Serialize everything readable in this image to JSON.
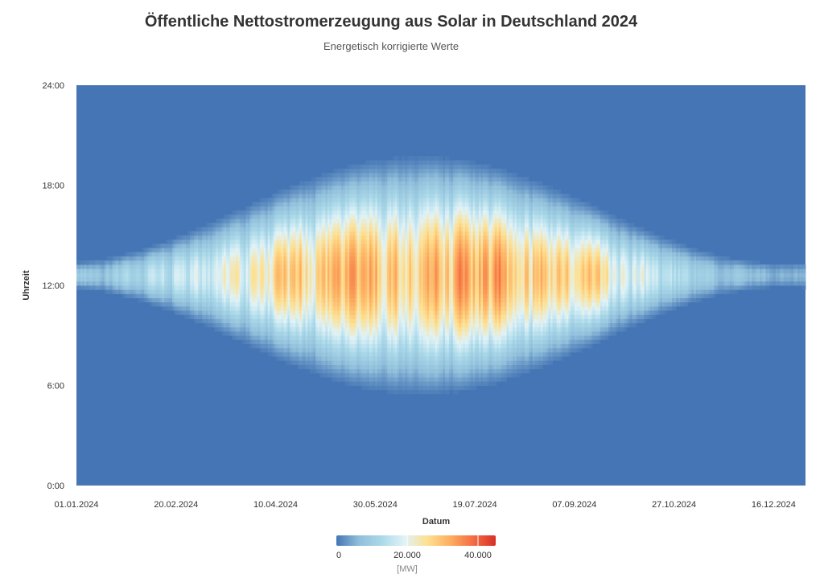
{
  "chart_data": {
    "type": "heatmap",
    "title": "Öffentliche Nettostromerzeugung aus Solar in Deutschland 2024",
    "subtitle": "Energetisch korrigierte Werte",
    "xlabel": "Datum",
    "ylabel": "Uhrzeit",
    "x_tick_labels": [
      "01.01.2024",
      "20.02.2024",
      "10.04.2024",
      "30.05.2024",
      "19.07.2024",
      "07.09.2024",
      "27.10.2024",
      "16.12.2024"
    ],
    "y_tick_labels": [
      "0:00",
      "6:00",
      "12:00",
      "18:00",
      "24:00"
    ],
    "x_range": [
      "01.01.2024",
      "31.12.2024"
    ],
    "y_range": [
      "0:00",
      "24:00"
    ],
    "colorbar": {
      "min": 0,
      "max": 45000,
      "tick_labels": [
        "0",
        "20.000",
        "40.000"
      ],
      "unit": "[MW]",
      "colors": [
        "#4575b4",
        "#91bfdb",
        "#abd9e9",
        "#e0f3f8",
        "#fee090",
        "#fdae61",
        "#f46d43",
        "#d73027"
      ]
    },
    "peak_values_by_month": [
      {
        "month": "01.2024",
        "peak_mw": 13000
      },
      {
        "month": "02.2024",
        "peak_mw": 22000
      },
      {
        "month": "03.2024",
        "peak_mw": 30000
      },
      {
        "month": "04.2024",
        "peak_mw": 38000
      },
      {
        "month": "05.2024",
        "peak_mw": 42000
      },
      {
        "month": "06.2024",
        "peak_mw": 42000
      },
      {
        "month": "07.2024",
        "peak_mw": 43000
      },
      {
        "month": "08.2024",
        "peak_mw": 44000
      },
      {
        "month": "09.2024",
        "peak_mw": 36000
      },
      {
        "month": "10.2024",
        "peak_mw": 24000
      },
      {
        "month": "11.2024",
        "peak_mw": 12000
      },
      {
        "month": "12.2024",
        "peak_mw": 9000
      }
    ]
  }
}
